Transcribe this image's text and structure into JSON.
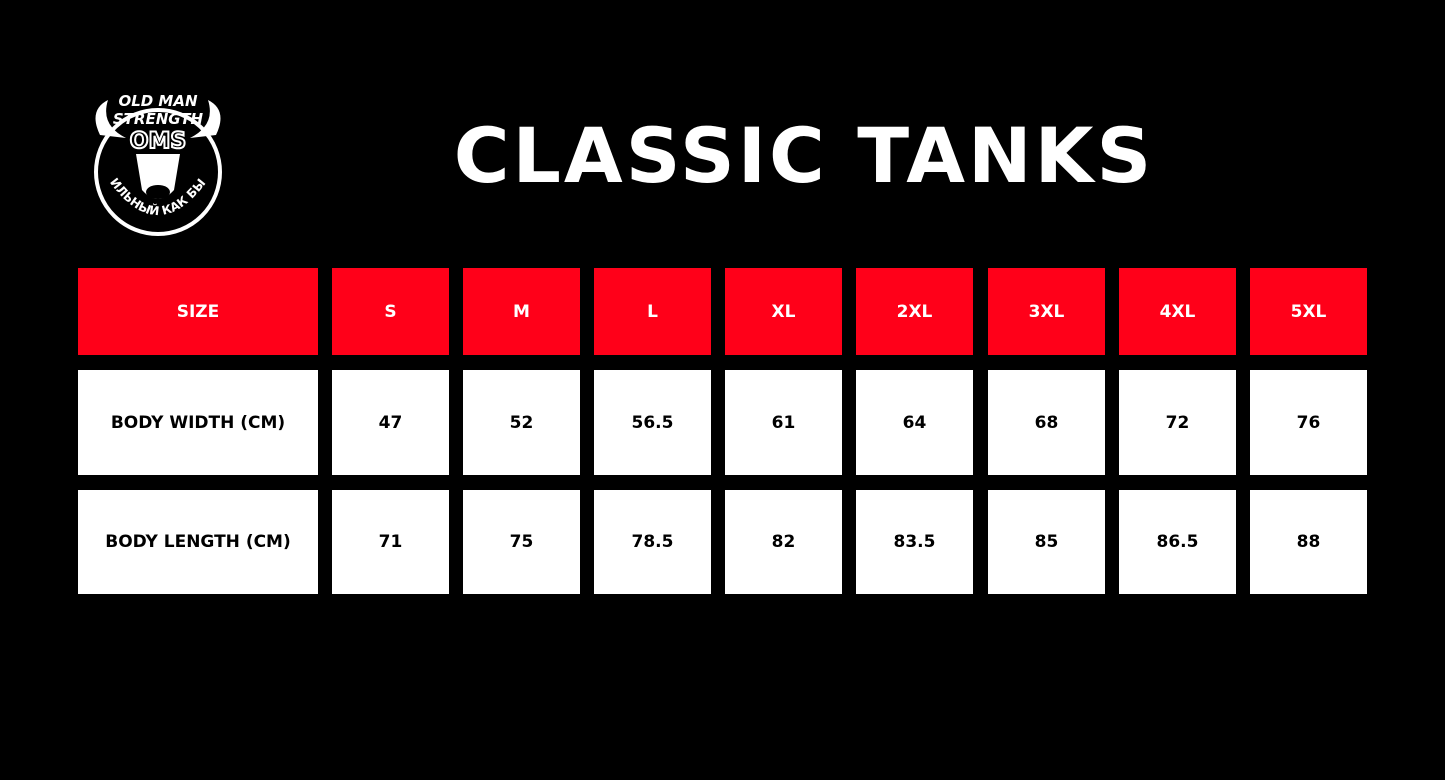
{
  "logo": {
    "top_text": "OLD MAN",
    "mid_text": "STRENGTH",
    "mono": "OMS",
    "bottom_text": "СИЛЬНЫЙ КАК БЫК"
  },
  "title": "CLASSIC TANKS",
  "colors": {
    "header_bg": "#ff0019",
    "body_bg": "#ffffff",
    "page_bg": "#000000"
  },
  "table": {
    "header": [
      "SIZE",
      "S",
      "M",
      "L",
      "XL",
      "2XL",
      "3XL",
      "4XL",
      "5XL"
    ],
    "rows": [
      [
        "BODY WIDTH (CM)",
        "47",
        "52",
        "56.5",
        "61",
        "64",
        "68",
        "72",
        "76"
      ],
      [
        "BODY LENGTH (CM)",
        "71",
        "75",
        "78.5",
        "82",
        "83.5",
        "85",
        "86.5",
        "88"
      ]
    ]
  }
}
